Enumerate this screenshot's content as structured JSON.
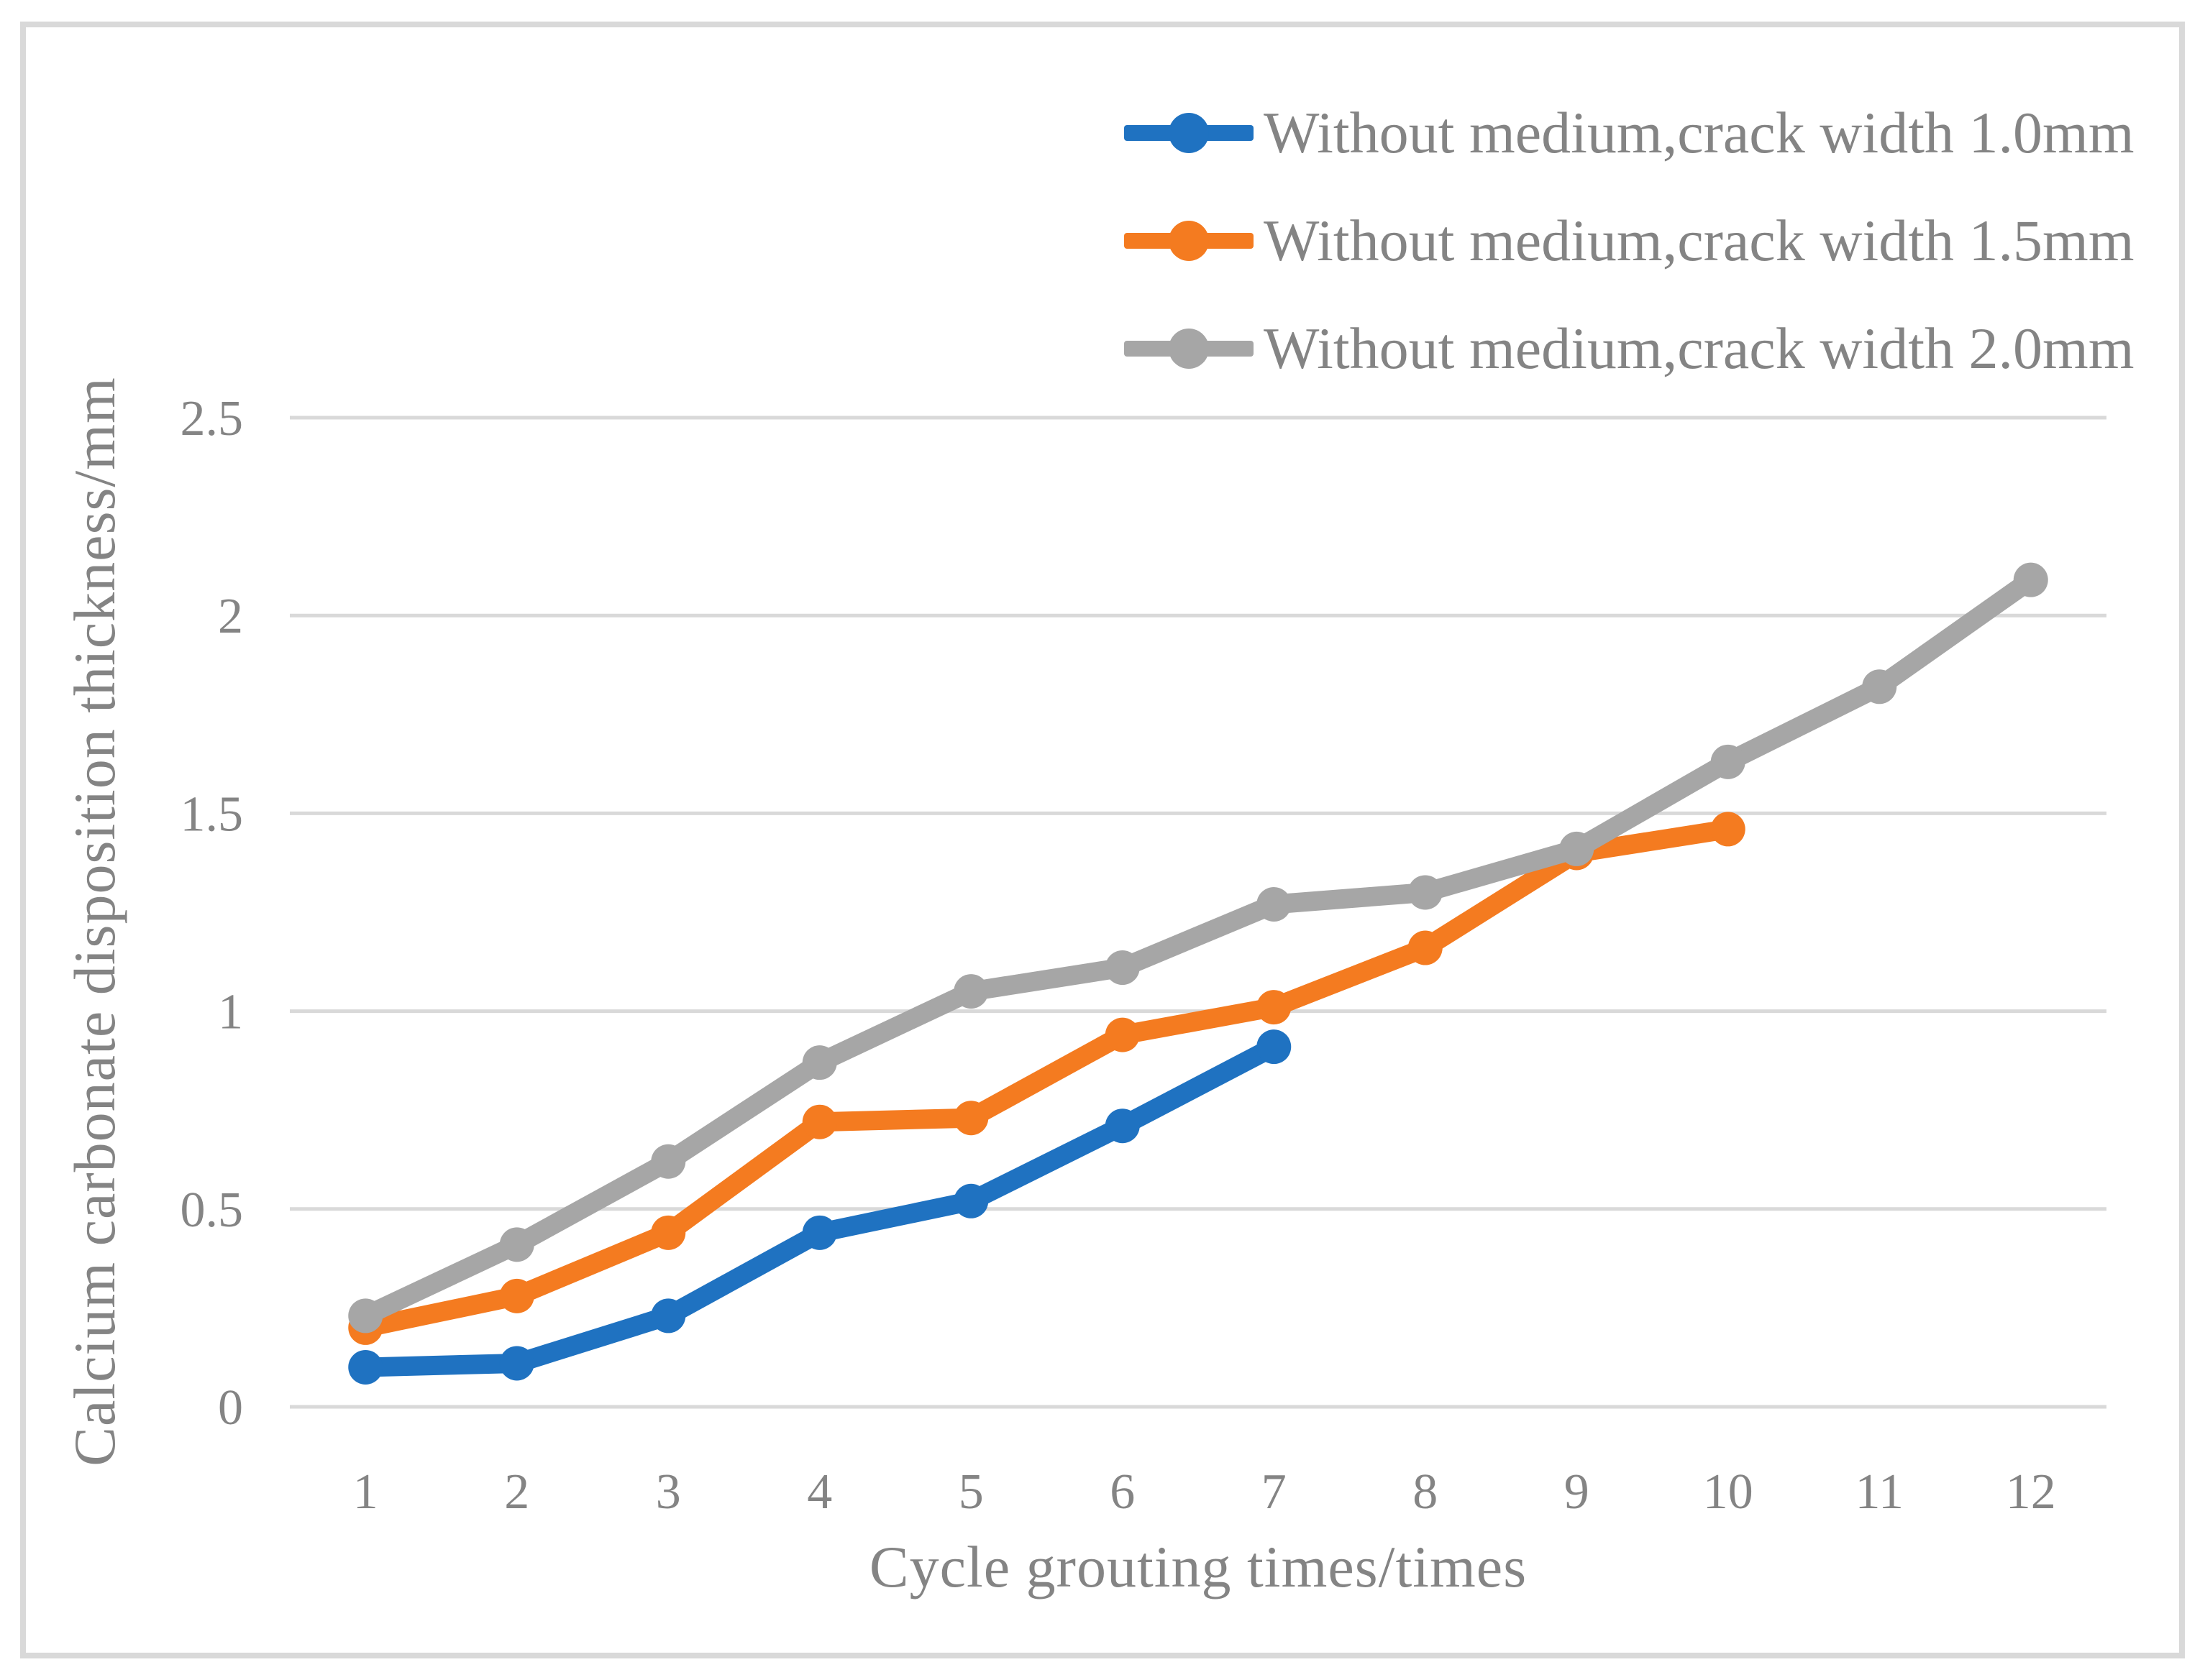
{
  "window": {
    "background": "#FFFFFF",
    "border_color": "#D9D9D9"
  },
  "chart_data": {
    "type": "line",
    "title": "",
    "xlabel": "Cycle grouting times/times",
    "ylabel": "Calcium carbonate disposition thickness/mm",
    "x_categories": [
      "1",
      "2",
      "3",
      "4",
      "5",
      "6",
      "7",
      "8",
      "9",
      "10",
      "11",
      "12"
    ],
    "y_ticks": [
      0,
      0.5,
      1,
      1.5,
      2,
      2.5
    ],
    "y_tick_labels": [
      "0",
      "0.5",
      "1",
      "1.5",
      "2",
      "2.5"
    ],
    "ylim": [
      0,
      2.5
    ],
    "grid": "horizontal",
    "grid_color": "#D9D9D9",
    "text_color": "#848484",
    "legend_position": "top-right",
    "marker_style": "circle",
    "series": [
      {
        "name": "Without medium,crack width 1.0mm",
        "color": "#1F72C1",
        "x": [
          1,
          2,
          3,
          4,
          5,
          6,
          7
        ],
        "values": [
          0.1,
          0.11,
          0.23,
          0.44,
          0.52,
          0.71,
          0.91
        ]
      },
      {
        "name": "Without medium,crack width 1.5mm",
        "color": "#F47B20",
        "x": [
          1,
          2,
          3,
          4,
          5,
          6,
          7,
          8,
          9,
          10
        ],
        "values": [
          0.2,
          0.28,
          0.44,
          0.72,
          0.73,
          0.94,
          1.01,
          1.16,
          1.4,
          1.46
        ]
      },
      {
        "name": "Without medium,crack width 2.0mm",
        "color": "#A6A6A6",
        "x": [
          1,
          2,
          3,
          4,
          5,
          6,
          7,
          8,
          9,
          10,
          11,
          12
        ],
        "values": [
          0.23,
          0.41,
          0.62,
          0.87,
          1.05,
          1.11,
          1.27,
          1.3,
          1.41,
          1.63,
          1.82,
          2.09
        ]
      }
    ]
  }
}
